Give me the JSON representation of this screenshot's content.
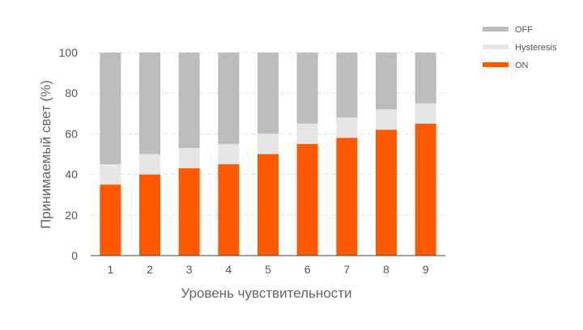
{
  "chart_data": {
    "type": "bar",
    "stacked": true,
    "categories": [
      "1",
      "2",
      "3",
      "4",
      "5",
      "6",
      "7",
      "8",
      "9"
    ],
    "series": [
      {
        "name": "ON",
        "color": "#ff5a00",
        "values": [
          35,
          40,
          43,
          45,
          50,
          55,
          58,
          62,
          65
        ]
      },
      {
        "name": "Hysteresis",
        "color": "#e6e6e6",
        "values": [
          10,
          10,
          10,
          10,
          10,
          10,
          10,
          10,
          10
        ]
      },
      {
        "name": "OFF",
        "color": "#bdbdbd",
        "values": [
          55,
          50,
          47,
          45,
          40,
          35,
          32,
          28,
          25
        ]
      }
    ],
    "legend_order": [
      "OFF",
      "Hysteresis",
      "ON"
    ],
    "xlabel": "Уровень чувствительности",
    "ylabel": "Принимаемый свет (%)",
    "ylim": [
      0,
      100
    ],
    "yticks": [
      0,
      20,
      40,
      60,
      80,
      100
    ],
    "grid": true,
    "legend_position": "top-right"
  }
}
